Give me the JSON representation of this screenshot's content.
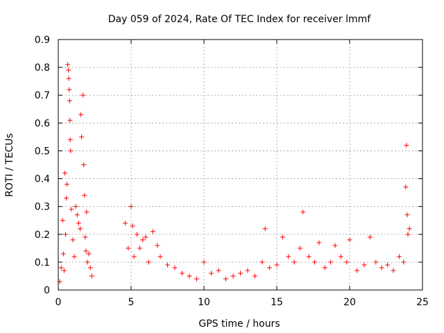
{
  "chart_data": {
    "type": "scatter",
    "title": "Day 059 of 2024, Rate Of TEC Index for receiver lmmf",
    "xlabel": "GPS time / hours",
    "ylabel": "ROTI / TECUs",
    "xlim": [
      0,
      25
    ],
    "ylim": [
      0,
      0.9
    ],
    "x_ticks": [
      "0",
      "5",
      "10",
      "15",
      "20",
      "25"
    ],
    "y_ticks": [
      "0",
      "0.1",
      "0.2",
      "0.3",
      "0.4",
      "0.5",
      "0.6",
      "0.7",
      "0.8",
      "0.9"
    ],
    "grid": true,
    "legend": "none",
    "marker": "plus",
    "marker_color": "#ff0000",
    "series": [
      {
        "x": [
          0.1,
          0.2,
          0.3,
          0.35,
          0.4,
          0.45,
          0.5,
          0.55,
          0.6,
          0.65,
          0.7,
          0.72,
          0.75,
          0.78,
          0.8,
          0.82,
          0.85,
          0.9,
          1.0,
          1.1,
          1.2,
          1.3,
          1.4,
          1.5,
          1.55,
          1.6,
          1.7,
          1.75,
          1.8,
          1.85,
          1.9,
          1.95,
          2.0,
          2.1,
          2.2,
          2.3,
          4.6,
          4.8,
          5.0,
          5.1,
          5.2,
          5.4,
          5.6,
          5.8,
          6.0,
          6.2,
          6.5,
          6.8,
          7.0,
          7.5,
          8.0,
          8.5,
          9.0,
          9.5,
          10.0,
          10.5,
          11.0,
          11.5,
          12.0,
          12.5,
          13.0,
          13.5,
          14.0,
          14.2,
          14.5,
          15.0,
          15.4,
          15.8,
          16.2,
          16.6,
          16.8,
          17.2,
          17.6,
          17.9,
          18.3,
          18.7,
          19.0,
          19.4,
          19.8,
          20.0,
          20.5,
          21.0,
          21.4,
          21.8,
          22.2,
          22.6,
          23.0,
          23.4,
          23.7,
          23.85,
          23.9,
          23.95,
          24.0,
          24.1
        ],
        "y": [
          0.03,
          0.08,
          0.25,
          0.13,
          0.07,
          0.42,
          0.2,
          0.33,
          0.38,
          0.81,
          0.79,
          0.76,
          0.72,
          0.68,
          0.61,
          0.54,
          0.5,
          0.29,
          0.18,
          0.12,
          0.3,
          0.27,
          0.24,
          0.22,
          0.63,
          0.55,
          0.7,
          0.45,
          0.34,
          0.19,
          0.14,
          0.28,
          0.1,
          0.13,
          0.08,
          0.05,
          0.24,
          0.15,
          0.3,
          0.23,
          0.12,
          0.2,
          0.15,
          0.18,
          0.19,
          0.1,
          0.21,
          0.16,
          0.12,
          0.09,
          0.08,
          0.06,
          0.05,
          0.04,
          0.1,
          0.06,
          0.07,
          0.04,
          0.05,
          0.06,
          0.07,
          0.05,
          0.1,
          0.22,
          0.08,
          0.09,
          0.19,
          0.12,
          0.1,
          0.15,
          0.28,
          0.12,
          0.1,
          0.17,
          0.08,
          0.1,
          0.16,
          0.12,
          0.1,
          0.18,
          0.07,
          0.09,
          0.19,
          0.1,
          0.08,
          0.09,
          0.07,
          0.12,
          0.1,
          0.37,
          0.52,
          0.27,
          0.2,
          0.22
        ]
      }
    ]
  }
}
